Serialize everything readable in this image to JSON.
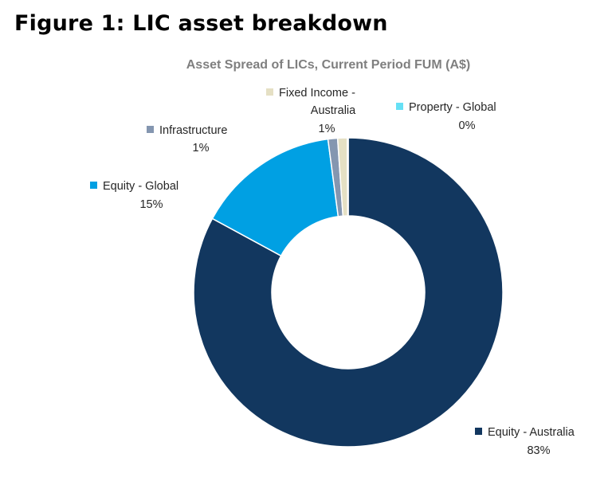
{
  "figure_title": "Figure 1: LIC asset breakdown",
  "chart_data": {
    "type": "pie",
    "title": "Asset Spread of LICs, Current Period FUM (A$)",
    "donut": true,
    "series": [
      {
        "name": "Equity - Australia",
        "value": 83,
        "label": "83%",
        "color": "#12375f"
      },
      {
        "name": "Equity - Global",
        "value": 15,
        "label": "15%",
        "color": "#00a0e3"
      },
      {
        "name": "Infrastructure",
        "value": 1,
        "label": "1%",
        "color": "#8496b0"
      },
      {
        "name": "Fixed Income - Australia",
        "name_lines": [
          "Fixed Income -",
          "Australia"
        ],
        "value": 1,
        "label": "1%",
        "color": "#e5e0c4"
      },
      {
        "name": "Property - Global",
        "value": 0.1,
        "label": "0%",
        "color": "#66e0f5"
      }
    ],
    "legend": "labels-with-markers"
  }
}
